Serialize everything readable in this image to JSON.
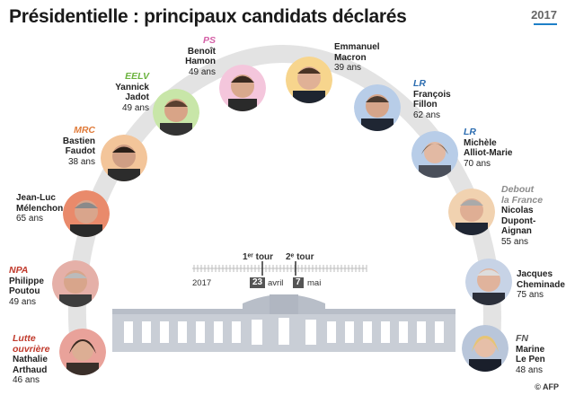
{
  "title": "Présidentielle : principaux candidats déclarés",
  "logo": "2017",
  "colors": {
    "arc": "#dddddd",
    "party_ps": "#d45fa6",
    "party_eelv": "#6cb33f",
    "party_mrc": "#e07b3a",
    "party_lr": "#2b6cb0",
    "party_dlf": "#8c8c8c",
    "party_npa": "#c0392b",
    "party_lo": "#c0392b",
    "party_fn": "#555555"
  },
  "candidates": [
    {
      "party": "PS",
      "first": "Benoît",
      "last": "Hamon",
      "age": "49 ans",
      "halo": "#f4c6dc"
    },
    {
      "party": "",
      "first": "Emmanuel",
      "last": "Macron",
      "age": "39 ans",
      "halo": "#f7d58d"
    },
    {
      "party": "EELV",
      "first": "Yannick",
      "last": "Jadot",
      "age": "49 ans",
      "halo": "#c8e6a8"
    },
    {
      "party": "LR",
      "first": "François",
      "last": "Fillon",
      "age": "62 ans",
      "halo": "#b8cde8"
    },
    {
      "party": "MRC",
      "first": "Bastien",
      "last": "Faudot",
      "age": "38 ans",
      "halo": "#f3c59a"
    },
    {
      "party": "LR",
      "first": "Michèle",
      "last": "Alliot-Marie",
      "age": "70 ans",
      "halo": "#b8cde8"
    },
    {
      "party": "",
      "first": "Jean-Luc",
      "last": "Mélenchon",
      "age": "65 ans",
      "halo": "#e98a6b"
    },
    {
      "party": "Debout\nla France",
      "party1": "Debout",
      "party2": "la France",
      "first": "Nicolas",
      "last": "Dupont-Aignan",
      "age": "55 ans",
      "halo": "#f1d2b0"
    },
    {
      "party": "NPA",
      "first": "Philippe",
      "last": "Poutou",
      "age": "49 ans",
      "halo": "#e5b0a8"
    },
    {
      "party": "",
      "first": "Jacques",
      "last": "Cheminade",
      "age": "75 ans",
      "halo": "#c7d3e6"
    },
    {
      "party": "Lutte\nouvrière",
      "party1": "Lutte",
      "party2": "ouvrière",
      "first": "Nathalie",
      "last": "Arthaud",
      "age": "46 ans",
      "halo": "#e9a29a"
    },
    {
      "party": "FN",
      "first": "Marine",
      "last": "Le Pen",
      "age": "48 ans",
      "halo": "#b9c6da"
    }
  ],
  "timeline": {
    "year": "2017",
    "round1": "1ᵉʳ tour",
    "round2": "2ᵉ tour",
    "day1": "23",
    "month1": "avril",
    "day2": "7",
    "month2": "mai"
  },
  "credit": "© AFP"
}
